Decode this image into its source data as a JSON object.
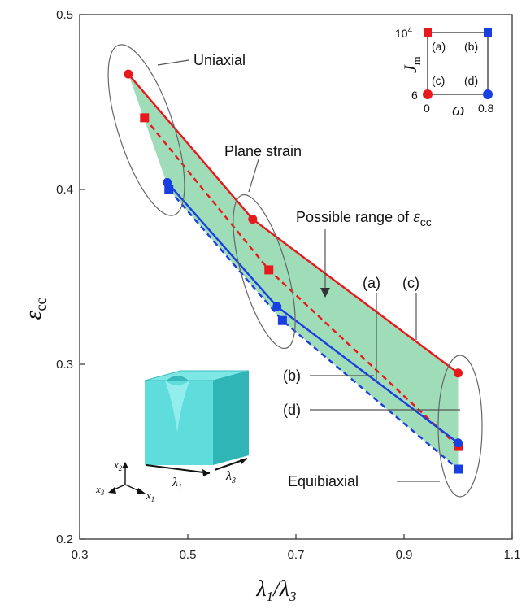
{
  "chart_data": {
    "type": "line",
    "xlim": [
      0.3,
      1.1
    ],
    "ylim": [
      0.2,
      0.5
    ],
    "xticks": [
      "0.3",
      "0.5",
      "0.7",
      "0.9",
      "1.1"
    ],
    "xtick_values": [
      0.3,
      0.5,
      0.7,
      0.9,
      1.1
    ],
    "yticks": [
      "0.2",
      "0.3",
      "0.4",
      "0.5"
    ],
    "ytick_values": [
      0.2,
      0.3,
      0.4,
      0.5
    ],
    "xlabel_main": "λ",
    "xlabel_sub1": "1",
    "xlabel_sep": "/λ",
    "xlabel_sub2": "3",
    "ylabel_main": "ε",
    "ylabel_sub": "cc",
    "shaded_region": {
      "color": "#9fdcb8",
      "upper": [
        [
          0.39,
          0.466
        ],
        [
          0.62,
          0.383
        ],
        [
          1.0,
          0.295
        ]
      ],
      "lower": [
        [
          0.39,
          0.466
        ],
        [
          0.465,
          0.4
        ],
        [
          0.675,
          0.325
        ],
        [
          1.0,
          0.24
        ]
      ]
    },
    "series": [
      {
        "id": "a",
        "color": "#e8191c",
        "dash": false,
        "marker": "circle",
        "points": [
          [
            0.39,
            0.466
          ],
          [
            0.62,
            0.383
          ],
          [
            1.0,
            0.295
          ]
        ]
      },
      {
        "id": "c",
        "color": "#e8191c",
        "dash": true,
        "marker": "square",
        "points": [
          [
            0.42,
            0.441
          ],
          [
            0.65,
            0.354
          ],
          [
            1.0,
            0.253
          ]
        ]
      },
      {
        "id": "b",
        "color": "#1a3fe0",
        "dash": false,
        "marker": "circle",
        "points": [
          [
            0.462,
            0.404
          ],
          [
            0.665,
            0.333
          ],
          [
            1.0,
            0.255
          ]
        ]
      },
      {
        "id": "d",
        "color": "#1a3fe0",
        "dash": true,
        "marker": "square",
        "points": [
          [
            0.465,
            0.4
          ],
          [
            0.675,
            0.325
          ],
          [
            1.0,
            0.24
          ]
        ]
      }
    ],
    "annotations": {
      "uniaxial": "Uniaxial",
      "plane_strain": "Plane strain",
      "possible_range": "Possible range of",
      "possible_range_sym": "ε",
      "possible_range_sub": "cc",
      "label_a": "(a)",
      "label_c": "(c)",
      "label_b": "(b)",
      "label_d": "(d)",
      "equibiaxial": "Equibiaxial"
    },
    "inset": {
      "y_top": "10",
      "y_top_exp": "4",
      "y_bottom": "6",
      "x_left": "0",
      "x_right": "0.8",
      "xlabel": "ω",
      "ylabel_main": "J",
      "ylabel_sub": "m",
      "cells": [
        "(a)",
        "(b)",
        "(c)",
        "(d)"
      ]
    },
    "specimen": {
      "color": "#4fd6d6",
      "axis_x1": "x",
      "axis_x1_sub": "1",
      "axis_x2": "x",
      "axis_x2_sub": "2",
      "axis_x3": "x",
      "axis_x3_sub": "3",
      "dim_l1": "λ",
      "dim_l1_sub": "1",
      "dim_l3": "λ",
      "dim_l3_sub": "3"
    }
  }
}
